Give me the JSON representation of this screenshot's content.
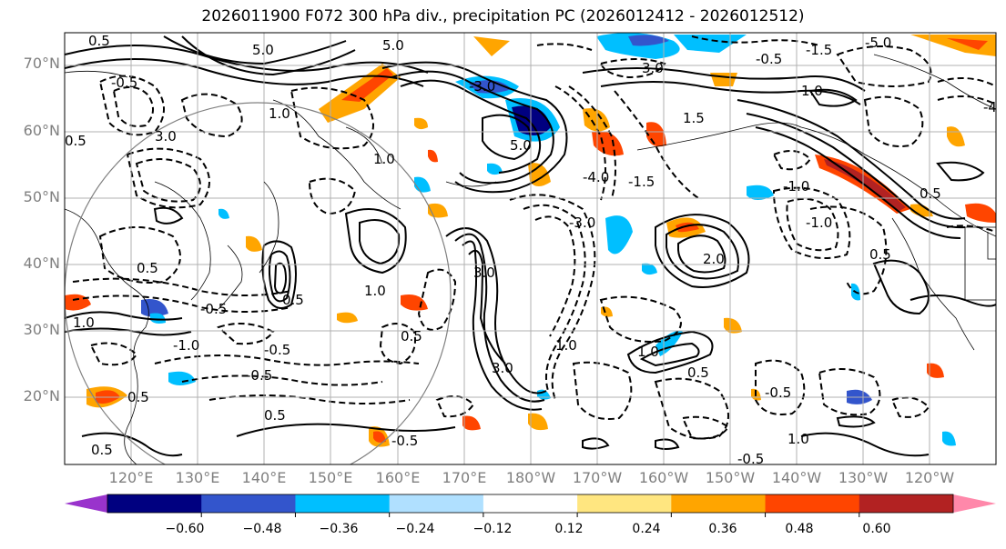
{
  "title": "2026011900 F072 300 hPa div., precipitation PC (2026012412 - 2026012512)",
  "lat_labels": [
    "70°N",
    "60°N",
    "50°N",
    "40°N",
    "30°N",
    "20°N"
  ],
  "lon_labels": [
    "120°E",
    "130°E",
    "140°E",
    "150°E",
    "160°E",
    "170°E",
    "180°W",
    "170°W",
    "160°W",
    "150°W",
    "140°W",
    "130°W",
    "120°W"
  ],
  "colorbar": {
    "colors": [
      "#9933cc",
      "#000080",
      "#3355cc",
      "#00bfff",
      "#b0e0ff",
      "#ffffff",
      "#ffe680",
      "#ffa500",
      "#ff4500",
      "#b22222",
      "#ff88aa"
    ],
    "ticks": [
      "−0.60",
      "−0.48",
      "−0.36",
      "−0.24",
      "−0.12",
      "0.12",
      "0.24",
      "0.36",
      "0.48",
      "0.60"
    ]
  },
  "contour_labels": [
    "0.5",
    "1.0",
    "-0.5",
    "-1.0",
    "3.0",
    "-3.0",
    "5.0",
    "-5.0",
    "1.5",
    "-1.5",
    "2.0",
    "-4.0"
  ]
}
